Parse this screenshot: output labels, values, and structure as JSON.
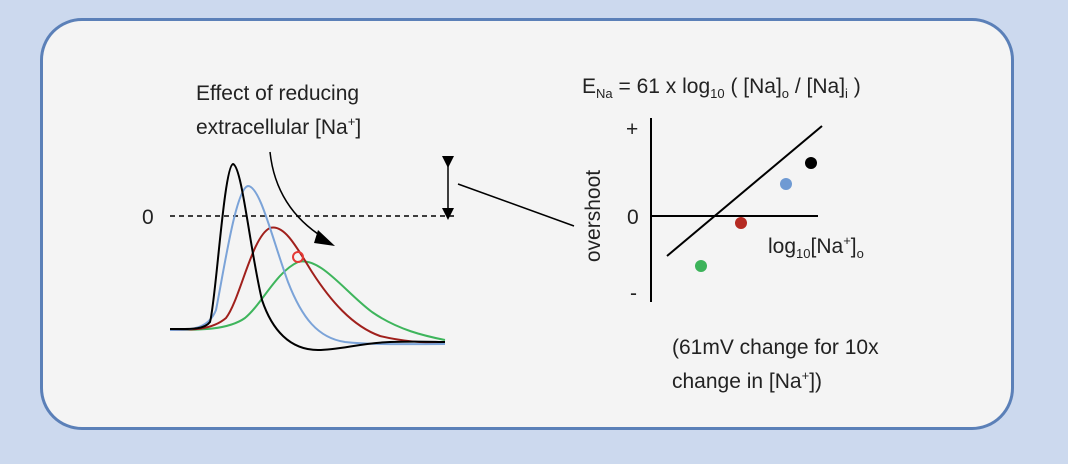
{
  "annotation": {
    "line1": "Effect of reducing",
    "line2_prefix": "extracellular [Na",
    "line2_sup": "+",
    "line2_suffix": "]"
  },
  "zero_label": "0",
  "equation": {
    "e": "E",
    "e_sub": "Na",
    "eq_mid": " = 61 x log",
    "log_sub": "10",
    "paren_open": "( [Na]",
    "o_sub": "o",
    "slash": " / [Na]",
    "i_sub": "i",
    "paren_close": " )"
  },
  "plot": {
    "ylabel": "overshoot",
    "plus": "+",
    "minus": "-",
    "zero": "0",
    "xlabel_a": "log",
    "xlabel_sub": "10",
    "xlabel_b": "[Na",
    "xlabel_sup": "+",
    "xlabel_c": "]",
    "xlabel_sub2": "o",
    "points": [
      {
        "name": "green",
        "color": "#3cb35a"
      },
      {
        "name": "red",
        "color": "#b52a22"
      },
      {
        "name": "blue",
        "color": "#6f9ad3"
      },
      {
        "name": "black",
        "color": "#000000"
      }
    ]
  },
  "caption": {
    "line1": "(61mV change for 10x",
    "line2_prefix": "change in [Na",
    "line2_sup": "+",
    "line2_suffix": "])"
  },
  "traces": {
    "black": "#000000",
    "blue": "#7ba3d8",
    "red": "#a0201c",
    "green": "#3eb55c",
    "marker": "#e53935"
  }
}
